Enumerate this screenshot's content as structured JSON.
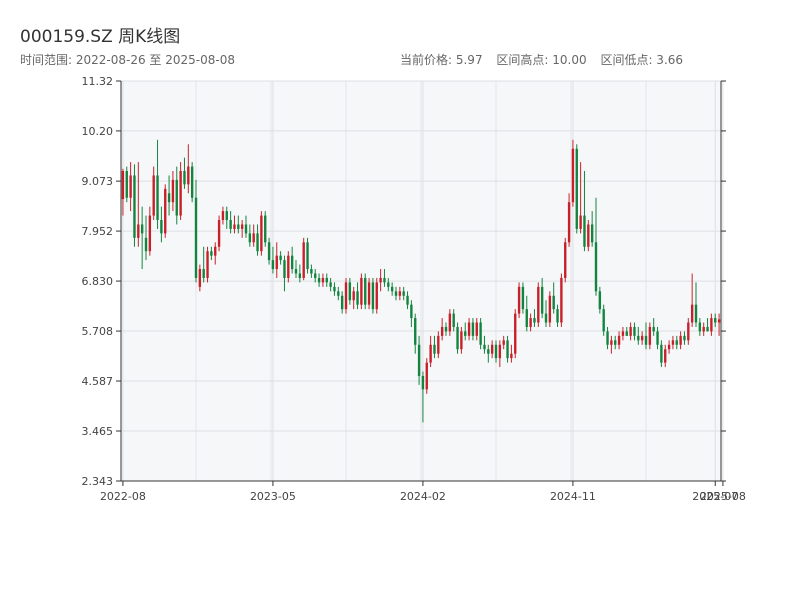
{
  "header": {
    "title": "000159.SZ 周K线图",
    "range_text": "时间范围: 2022-08-26 至 2025-08-08",
    "current_price": "当前价格: 5.97",
    "range_high": "区间高点: 10.00",
    "range_low": "区间低点: 3.66"
  },
  "colors": {
    "up": "#c8202a",
    "down": "#13843f",
    "plot_bg": "#f6f7f9",
    "grid": "#dcdfe3",
    "axis": "#333333"
  },
  "chart_data": {
    "type": "candlestick",
    "title": "000159.SZ 周K线图",
    "y_ticks": [
      "2.343",
      "3.465",
      "4.587",
      "5.708",
      "6.830",
      "7.952",
      "9.073",
      "10.20",
      "11.32"
    ],
    "ylim": [
      2.343,
      11.32
    ],
    "x_ticks": [
      {
        "label": "2022-08",
        "index": 0
      },
      {
        "label": "2023-05",
        "index": 39
      },
      {
        "label": "2024-02",
        "index": 78
      },
      {
        "label": "2024-11",
        "index": 117
      },
      {
        "label": "2025-07",
        "index": 154
      },
      {
        "label": "2025-08",
        "index": 156
      }
    ],
    "grid": true,
    "candles": [
      [
        8.67,
        9.35,
        8.3,
        9.3
      ],
      [
        9.3,
        9.4,
        8.6,
        8.7
      ],
      [
        8.7,
        9.5,
        8.4,
        9.2
      ],
      [
        9.2,
        9.45,
        7.6,
        7.8
      ],
      [
        7.8,
        9.5,
        7.6,
        8.1
      ],
      [
        8.1,
        8.5,
        7.1,
        7.9
      ],
      [
        7.8,
        8.3,
        7.3,
        7.5
      ],
      [
        7.5,
        8.5,
        7.4,
        8.3
      ],
      [
        8.3,
        9.4,
        8.2,
        9.2
      ],
      [
        9.2,
        10.0,
        8.0,
        8.2
      ],
      [
        8.2,
        8.5,
        7.7,
        7.9
      ],
      [
        7.9,
        9.0,
        7.8,
        8.9
      ],
      [
        8.8,
        9.2,
        8.3,
        8.6
      ],
      [
        8.6,
        9.3,
        8.4,
        9.1
      ],
      [
        9.1,
        9.4,
        8.1,
        8.3
      ],
      [
        8.3,
        9.5,
        8.2,
        9.3
      ],
      [
        9.3,
        9.6,
        8.9,
        9.0
      ],
      [
        9.0,
        9.9,
        8.8,
        9.4
      ],
      [
        9.4,
        9.5,
        8.6,
        8.7
      ],
      [
        8.7,
        9.1,
        6.8,
        6.9
      ],
      [
        6.7,
        7.2,
        6.6,
        7.1
      ],
      [
        7.1,
        7.6,
        6.8,
        6.9
      ],
      [
        6.9,
        7.6,
        6.8,
        7.5
      ],
      [
        7.5,
        7.6,
        7.3,
        7.4
      ],
      [
        7.4,
        7.7,
        7.2,
        7.6
      ],
      [
        7.6,
        8.3,
        7.5,
        8.2
      ],
      [
        8.2,
        8.5,
        8.1,
        8.4
      ],
      [
        8.4,
        8.5,
        8.0,
        8.2
      ],
      [
        8.2,
        8.4,
        7.9,
        8.0
      ],
      [
        8.0,
        8.3,
        7.9,
        8.1
      ],
      [
        8.1,
        8.3,
        7.9,
        8.0
      ],
      [
        8.0,
        8.2,
        7.8,
        8.1
      ],
      [
        8.1,
        8.3,
        7.8,
        7.9
      ],
      [
        7.9,
        8.1,
        7.6,
        7.7
      ],
      [
        7.7,
        8.1,
        7.6,
        7.9
      ],
      [
        7.9,
        8.1,
        7.4,
        7.5
      ],
      [
        7.5,
        8.4,
        7.4,
        8.3
      ],
      [
        8.3,
        8.4,
        7.6,
        7.7
      ],
      [
        7.7,
        7.8,
        7.2,
        7.3
      ],
      [
        7.3,
        7.6,
        7.0,
        7.1
      ],
      [
        7.1,
        7.7,
        6.9,
        7.4
      ],
      [
        7.4,
        7.5,
        7.2,
        7.3
      ],
      [
        7.3,
        7.4,
        6.6,
        6.9
      ],
      [
        6.9,
        7.5,
        6.8,
        7.4
      ],
      [
        7.4,
        7.6,
        7.0,
        7.1
      ],
      [
        7.1,
        7.3,
        6.9,
        7.0
      ],
      [
        7.0,
        7.2,
        6.8,
        6.9
      ],
      [
        6.9,
        7.8,
        6.85,
        7.7
      ],
      [
        7.7,
        7.8,
        7.0,
        7.1
      ],
      [
        7.1,
        7.2,
        6.9,
        7.0
      ],
      [
        7.0,
        7.1,
        6.8,
        6.9
      ],
      [
        6.9,
        7.0,
        6.7,
        6.8
      ],
      [
        6.8,
        7.0,
        6.7,
        6.9
      ],
      [
        6.9,
        7.0,
        6.7,
        6.8
      ],
      [
        6.8,
        6.9,
        6.6,
        6.7
      ],
      [
        6.7,
        6.8,
        6.5,
        6.6
      ],
      [
        6.6,
        6.7,
        6.4,
        6.5
      ],
      [
        6.5,
        6.6,
        6.1,
        6.2
      ],
      [
        6.2,
        6.9,
        6.1,
        6.8
      ],
      [
        6.8,
        6.9,
        6.3,
        6.4
      ],
      [
        6.4,
        6.7,
        6.2,
        6.6
      ],
      [
        6.6,
        6.8,
        6.2,
        6.3
      ],
      [
        6.3,
        7.0,
        6.2,
        6.9
      ],
      [
        6.9,
        7.0,
        6.2,
        6.3
      ],
      [
        6.3,
        6.9,
        6.2,
        6.8
      ],
      [
        6.8,
        6.9,
        6.1,
        6.2
      ],
      [
        6.2,
        6.9,
        6.1,
        6.8
      ],
      [
        6.8,
        7.1,
        6.6,
        6.9
      ],
      [
        6.9,
        7.1,
        6.7,
        6.8
      ],
      [
        6.8,
        6.9,
        6.6,
        6.7
      ],
      [
        6.7,
        6.8,
        6.5,
        6.6
      ],
      [
        6.6,
        6.7,
        6.4,
        6.5
      ],
      [
        6.5,
        6.7,
        6.4,
        6.6
      ],
      [
        6.6,
        6.7,
        6.4,
        6.5
      ],
      [
        6.5,
        6.6,
        6.2,
        6.3
      ],
      [
        6.3,
        6.4,
        5.8,
        6.0
      ],
      [
        6.0,
        6.1,
        5.2,
        5.4
      ],
      [
        5.4,
        5.6,
        4.5,
        4.7
      ],
      [
        4.7,
        4.8,
        3.66,
        4.4
      ],
      [
        4.4,
        5.1,
        4.3,
        5.0
      ],
      [
        5.0,
        5.6,
        4.9,
        5.4
      ],
      [
        5.4,
        5.6,
        5.1,
        5.2
      ],
      [
        5.2,
        5.7,
        5.1,
        5.6
      ],
      [
        5.6,
        6.0,
        5.5,
        5.8
      ],
      [
        5.8,
        5.9,
        5.6,
        5.7
      ],
      [
        5.7,
        6.2,
        5.6,
        6.1
      ],
      [
        6.1,
        6.2,
        5.7,
        5.8
      ],
      [
        5.8,
        5.9,
        5.2,
        5.3
      ],
      [
        5.3,
        5.8,
        5.2,
        5.7
      ],
      [
        5.7,
        5.9,
        5.5,
        5.6
      ],
      [
        5.6,
        6.0,
        5.5,
        5.9
      ],
      [
        5.9,
        6.0,
        5.5,
        5.6
      ],
      [
        5.6,
        6.0,
        5.5,
        5.9
      ],
      [
        5.9,
        6.0,
        5.3,
        5.4
      ],
      [
        5.4,
        5.6,
        5.2,
        5.3
      ],
      [
        5.3,
        5.4,
        5.0,
        5.2
      ],
      [
        5.2,
        5.5,
        5.1,
        5.4
      ],
      [
        5.4,
        5.5,
        5.0,
        5.1
      ],
      [
        5.1,
        5.5,
        4.9,
        5.4
      ],
      [
        5.4,
        5.6,
        5.3,
        5.5
      ],
      [
        5.5,
        5.6,
        5.0,
        5.1
      ],
      [
        5.1,
        5.4,
        5.0,
        5.2
      ],
      [
        5.2,
        6.2,
        5.1,
        6.1
      ],
      [
        6.1,
        6.8,
        6.0,
        6.7
      ],
      [
        6.7,
        6.8,
        6.1,
        6.2
      ],
      [
        6.2,
        6.5,
        5.7,
        5.8
      ],
      [
        5.8,
        6.1,
        5.7,
        6.0
      ],
      [
        6.0,
        6.2,
        5.8,
        5.9
      ],
      [
        5.9,
        6.8,
        5.8,
        6.7
      ],
      [
        6.7,
        6.9,
        6.0,
        6.1
      ],
      [
        6.1,
        6.4,
        5.8,
        5.9
      ],
      [
        5.9,
        6.6,
        5.8,
        6.5
      ],
      [
        6.5,
        6.8,
        6.1,
        6.2
      ],
      [
        6.2,
        6.3,
        5.8,
        5.9
      ],
      [
        5.9,
        7.0,
        5.8,
        6.9
      ],
      [
        6.9,
        7.8,
        6.8,
        7.7
      ],
      [
        7.7,
        8.8,
        7.6,
        8.6
      ],
      [
        8.6,
        10.0,
        8.5,
        9.8
      ],
      [
        9.8,
        9.9,
        7.9,
        8.0
      ],
      [
        8.0,
        9.5,
        7.9,
        8.3
      ],
      [
        8.3,
        9.3,
        7.5,
        7.6
      ],
      [
        7.6,
        8.2,
        7.5,
        8.1
      ],
      [
        8.1,
        8.4,
        7.6,
        7.7
      ],
      [
        7.7,
        8.7,
        6.5,
        6.6
      ],
      [
        6.6,
        6.7,
        6.1,
        6.2
      ],
      [
        6.2,
        6.3,
        5.6,
        5.7
      ],
      [
        5.7,
        5.8,
        5.3,
        5.4
      ],
      [
        5.4,
        5.6,
        5.2,
        5.5
      ],
      [
        5.5,
        5.6,
        5.3,
        5.4
      ],
      [
        5.4,
        5.7,
        5.3,
        5.6
      ],
      [
        5.6,
        5.8,
        5.5,
        5.7
      ],
      [
        5.7,
        5.8,
        5.6,
        5.6
      ],
      [
        5.6,
        5.9,
        5.5,
        5.8
      ],
      [
        5.8,
        5.9,
        5.5,
        5.6
      ],
      [
        5.6,
        5.8,
        5.4,
        5.5
      ],
      [
        5.5,
        5.7,
        5.4,
        5.6
      ],
      [
        5.6,
        5.9,
        5.3,
        5.4
      ],
      [
        5.4,
        5.9,
        5.3,
        5.8
      ],
      [
        5.8,
        6.0,
        5.6,
        5.7
      ],
      [
        5.7,
        5.8,
        5.3,
        5.4
      ],
      [
        5.4,
        5.5,
        4.9,
        5.0
      ],
      [
        5.0,
        5.4,
        4.9,
        5.3
      ],
      [
        5.3,
        5.5,
        5.2,
        5.4
      ],
      [
        5.4,
        5.6,
        5.3,
        5.5
      ],
      [
        5.5,
        5.6,
        5.3,
        5.4
      ],
      [
        5.4,
        5.7,
        5.3,
        5.6
      ],
      [
        5.6,
        5.7,
        5.4,
        5.5
      ],
      [
        5.5,
        6.0,
        5.4,
        5.9
      ],
      [
        5.9,
        7.0,
        5.8,
        6.3
      ],
      [
        6.3,
        6.8,
        5.8,
        5.9
      ],
      [
        5.9,
        6.0,
        5.6,
        5.7
      ],
      [
        5.7,
        5.9,
        5.6,
        5.8
      ],
      [
        5.8,
        6.0,
        5.7,
        5.7
      ],
      [
        5.7,
        6.1,
        5.6,
        6.0
      ],
      [
        6.0,
        6.1,
        5.8,
        5.9
      ],
      [
        5.9,
        6.1,
        5.6,
        5.97
      ]
    ]
  }
}
